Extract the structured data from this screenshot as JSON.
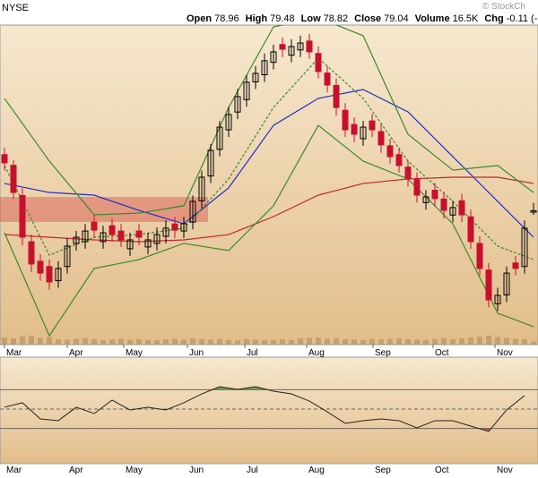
{
  "header": {
    "exchange": "NYSE",
    "watermark": "© StockCh",
    "items": [
      {
        "label": "Open",
        "value": "78.96"
      },
      {
        "label": "High",
        "value": "79.48"
      },
      {
        "label": "Low",
        "value": "78.82"
      },
      {
        "label": "Close",
        "value": "79.04"
      },
      {
        "label": "Volume",
        "value": "16.5K"
      },
      {
        "label": "Chg",
        "value": "-0.11 (-"
      }
    ]
  },
  "chart_data": {
    "type": "candlestick",
    "xlim": [
      -0.5,
      59.5
    ],
    "xticks": [
      {
        "value": 0,
        "label": "Mar"
      },
      {
        "value": 7,
        "label": "Apr"
      },
      {
        "value": 13.3,
        "label": "May"
      },
      {
        "value": 20.4,
        "label": "Jun"
      },
      {
        "value": 26.8,
        "label": "Jul"
      },
      {
        "value": 33.7,
        "label": "Aug"
      },
      {
        "value": 41.1,
        "label": "Sep"
      },
      {
        "value": 47.8,
        "label": "Oct"
      },
      {
        "value": 54.7,
        "label": "Nov"
      }
    ],
    "ylim": [
      71.5,
      89.5
    ],
    "up_color": "#000000",
    "down_color": "#c8102e",
    "open": [
      82.2,
      81.6,
      79.9,
      77.3,
      76.2,
      75.9,
      75.1,
      75.9,
      77.2,
      77.3,
      78.4,
      77.3,
      78.2,
      77.9,
      76.9,
      77.9,
      77.0,
      77.2,
      77.6,
      78.3,
      77.9,
      78.4,
      79.6,
      81.0,
      82.5,
      83.6,
      84.6,
      85.3,
      86.3,
      86.7,
      87.4,
      88.4,
      87.8,
      88.1,
      88.6,
      87.9,
      86.8,
      86.1,
      84.7,
      83.9,
      83.1,
      84.1,
      83.5,
      82.7,
      82.2,
      81.5,
      80.8,
      79.5,
      80.2,
      79.7,
      78.8,
      79.6,
      78.7,
      77.2,
      75.7,
      73.8,
      74.3,
      76.1,
      75.9,
      78.96
    ],
    "high": [
      82.6,
      81.9,
      80.3,
      77.7,
      76.6,
      76.3,
      76.2,
      77.5,
      77.9,
      78.3,
      78.8,
      78.2,
      78.6,
      78.3,
      77.8,
      78.3,
      77.8,
      78.1,
      78.5,
      78.7,
      78.7,
      79.9,
      81.3,
      82.8,
      84.1,
      84.9,
      85.9,
      86.7,
      87.2,
      87.9,
      88.4,
      88.8,
      88.7,
      88.9,
      89.0,
      88.3,
      87.2,
      86.5,
      85.1,
      84.3,
      84.1,
      84.5,
      83.9,
      83.1,
      82.6,
      81.9,
      81.2,
      80.2,
      80.6,
      80.1,
      79.6,
      80.0,
      79.1,
      77.6,
      76.1,
      74.7,
      75.9,
      76.5,
      78.5,
      79.48
    ],
    "low": [
      81.3,
      79.7,
      77.1,
      75.6,
      75.1,
      74.6,
      74.7,
      75.5,
      76.8,
      76.9,
      77.5,
      76.9,
      77.3,
      77.0,
      76.5,
      77.1,
      76.6,
      76.8,
      77.2,
      77.5,
      77.5,
      78.0,
      79.2,
      80.6,
      82.1,
      83.2,
      84.2,
      84.9,
      85.9,
      86.3,
      87.0,
      87.7,
      87.4,
      87.7,
      87.6,
      86.5,
      85.7,
      84.4,
      83.2,
      82.9,
      82.7,
      83.2,
      82.3,
      81.7,
      81.2,
      80.4,
      79.5,
      79.1,
      79.3,
      78.6,
      78.4,
      78.4,
      76.9,
      75.4,
      73.6,
      73.4,
      73.9,
      75.4,
      75.5,
      78.82
    ],
    "close": [
      81.74,
      80.07,
      77.55,
      76.04,
      75.53,
      75.03,
      75.79,
      77.05,
      77.55,
      77.9,
      77.95,
      77.8,
      77.7,
      77.4,
      77.4,
      77.55,
      77.4,
      77.7,
      78.06,
      77.95,
      78.31,
      79.57,
      80.93,
      82.44,
      83.75,
      84.46,
      85.47,
      86.28,
      86.78,
      87.49,
      87.99,
      88.14,
      88.29,
      88.49,
      87.99,
      86.88,
      86.12,
      84.86,
      83.6,
      83.35,
      83.75,
      83.6,
      82.75,
      82.09,
      81.59,
      80.83,
      79.92,
      79.82,
      79.72,
      79.06,
      79.22,
      78.81,
      77.3,
      75.79,
      74.02,
      74.27,
      75.53,
      75.79,
      78.06,
      79.04
    ],
    "volume": [
      40,
      35,
      45,
      50,
      38,
      42,
      30,
      28,
      33,
      36,
      30,
      25,
      28,
      32,
      27,
      30,
      26,
      24,
      29,
      31,
      27,
      35,
      30,
      28,
      33,
      26,
      24,
      30,
      28,
      25,
      27,
      30,
      26,
      34,
      38,
      40,
      32,
      36,
      30,
      28,
      26,
      31,
      29,
      33,
      35,
      30,
      28,
      27,
      32,
      36,
      30,
      34,
      40,
      45,
      50,
      42,
      38,
      33,
      30,
      16.5
    ],
    "vlim": [
      0,
      200
    ],
    "volume_color": "#b08a5e",
    "lines": [
      {
        "color": "#1f2fbf",
        "dashed": false,
        "x": [
          0,
          5,
          10,
          15,
          20,
          25,
          30,
          35,
          40,
          45,
          50,
          55,
          59
        ],
        "values": [
          80.58,
          80.07,
          79.92,
          79.06,
          78.31,
          80.33,
          83.85,
          85.37,
          85.87,
          84.61,
          82.09,
          79.57,
          77.55
        ]
      },
      {
        "color": "#c0272d",
        "dashed": false,
        "x": [
          0,
          5,
          10,
          15,
          20,
          25,
          30,
          35,
          40,
          45,
          50,
          55,
          59
        ],
        "values": [
          77.7,
          77.55,
          77.4,
          77.3,
          77.4,
          77.7,
          78.71,
          79.92,
          80.58,
          80.83,
          80.93,
          80.93,
          80.58
        ]
      },
      {
        "color": "#3d8a2a",
        "dashed": false,
        "x": [
          0,
          5,
          10,
          15,
          20,
          25,
          30,
          35,
          40,
          45,
          50,
          55,
          59
        ],
        "values": [
          85.37,
          81.84,
          78.81,
          78.91,
          79.32,
          84.86,
          89.4,
          89.91,
          88.9,
          83.35,
          81.33,
          81.59,
          80.07
        ]
      },
      {
        "color": "#3d8a2a",
        "dashed": false,
        "x": [
          0,
          5,
          10,
          15,
          20,
          25,
          30,
          35,
          40,
          45,
          50,
          55,
          59
        ],
        "values": [
          77.8,
          72.0,
          75.79,
          76.29,
          77.2,
          76.8,
          79.32,
          83.85,
          81.84,
          80.83,
          78.31,
          73.27,
          72.51
        ]
      },
      {
        "color": "#3d8a2a",
        "dashed": true,
        "x": [
          0,
          5,
          10,
          15,
          20,
          25,
          30,
          35,
          40,
          45,
          50,
          55,
          59
        ],
        "values": [
          81.59,
          76.54,
          77.55,
          77.7,
          78.06,
          80.83,
          84.86,
          87.64,
          85.37,
          81.84,
          79.57,
          77.05,
          76.29
        ]
      }
    ],
    "oscillator": {
      "ylim": [
        0,
        100
      ],
      "levels": [
        30,
        50,
        70
      ],
      "color": "#222222",
      "high_fill": "#3d8a2a",
      "low_fill": "#c0272d",
      "x": [
        0,
        2,
        4,
        6,
        8,
        10,
        12,
        14,
        16,
        18,
        20,
        22,
        24,
        26,
        28,
        30,
        32,
        34,
        36,
        38,
        40,
        42,
        44,
        46,
        48,
        50,
        52,
        54,
        56,
        58
      ],
      "values": [
        51.9,
        56.5,
        39.8,
        38,
        51.9,
        45.4,
        59.3,
        49.1,
        51.9,
        49.1,
        56.5,
        65.7,
        73.1,
        70.4,
        73.1,
        68.5,
        65.7,
        58.3,
        47.2,
        35.2,
        38,
        39.8,
        38,
        30.6,
        38,
        38,
        32.4,
        26.9,
        49.1,
        63.9
      ]
    }
  }
}
